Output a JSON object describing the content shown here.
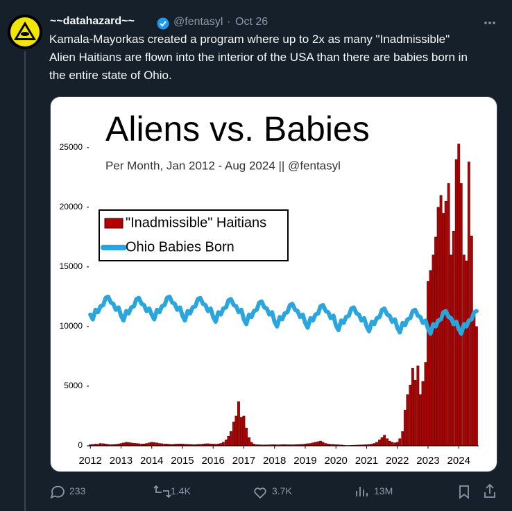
{
  "tweet": {
    "name": "~~datahazard~~",
    "handle": "@fentasyl",
    "separator": "·",
    "date": "Oct 26",
    "text": "Kamala-Mayorkas created a program where up to 2x as many \"Inadmissible\" Alien Haitians are flown into the interior of the USA than there are babies born in the entire state of Ohio."
  },
  "actions": {
    "replies": "233",
    "reposts": "1.4K",
    "likes": "3.7K",
    "views": "13M"
  },
  "chart_data": {
    "type": "bar+line",
    "title": "Aliens vs. Babies",
    "subtitle": "Per Month, Jan 2012 - Aug 2024 || @fentasyl",
    "legend": "upper left",
    "xlim": [
      2011.95,
      2024.65
    ],
    "xticks": [
      2012,
      2013,
      2014,
      2015,
      2016,
      2017,
      2018,
      2019,
      2020,
      2021,
      2022,
      2023,
      2024
    ],
    "ylim": [
      0,
      29000
    ],
    "yticks": [
      0,
      5000,
      10000,
      15000,
      20000,
      25000
    ],
    "x": [
      2012,
      2012.08,
      2012.17,
      2012.25,
      2012.33,
      2012.42,
      2012.5,
      2012.58,
      2012.67,
      2012.75,
      2012.83,
      2012.92,
      2013,
      2013.08,
      2013.17,
      2013.25,
      2013.33,
      2013.42,
      2013.5,
      2013.58,
      2013.67,
      2013.75,
      2013.83,
      2013.92,
      2014,
      2014.08,
      2014.17,
      2014.25,
      2014.33,
      2014.42,
      2014.5,
      2014.58,
      2014.67,
      2014.75,
      2014.83,
      2014.92,
      2015,
      2015.08,
      2015.17,
      2015.25,
      2015.33,
      2015.42,
      2015.5,
      2015.58,
      2015.67,
      2015.75,
      2015.83,
      2015.92,
      2016,
      2016.08,
      2016.17,
      2016.25,
      2016.33,
      2016.42,
      2016.5,
      2016.58,
      2016.67,
      2016.75,
      2016.83,
      2016.92,
      2017,
      2017.08,
      2017.17,
      2017.25,
      2017.33,
      2017.42,
      2017.5,
      2017.58,
      2017.67,
      2017.75,
      2017.83,
      2017.92,
      2018,
      2018.08,
      2018.17,
      2018.25,
      2018.33,
      2018.42,
      2018.5,
      2018.58,
      2018.67,
      2018.75,
      2018.83,
      2018.92,
      2019,
      2019.08,
      2019.17,
      2019.25,
      2019.33,
      2019.42,
      2019.5,
      2019.58,
      2019.67,
      2019.75,
      2019.83,
      2019.92,
      2020,
      2020.08,
      2020.17,
      2020.25,
      2020.33,
      2020.42,
      2020.5,
      2020.58,
      2020.67,
      2020.75,
      2020.83,
      2020.92,
      2021,
      2021.08,
      2021.17,
      2021.25,
      2021.33,
      2021.42,
      2021.5,
      2021.58,
      2021.67,
      2021.75,
      2021.83,
      2021.92,
      2022,
      2022.08,
      2022.17,
      2022.25,
      2022.33,
      2022.42,
      2022.5,
      2022.58,
      2022.67,
      2022.75,
      2022.83,
      2022.92,
      2023,
      2023.08,
      2023.17,
      2023.25,
      2023.33,
      2023.42,
      2023.5,
      2023.58,
      2023.67,
      2023.75,
      2023.83,
      2023.92,
      2024,
      2024.08,
      2024.17,
      2024.25,
      2024.33,
      2024.42,
      2024.5,
      2024.58
    ],
    "series": [
      {
        "name": "\"Inadmissible\" Haitians",
        "kind": "bar",
        "color": "#b30000",
        "values": [
          100,
          120,
          150,
          130,
          200,
          180,
          150,
          120,
          100,
          110,
          130,
          150,
          200,
          250,
          300,
          280,
          250,
          220,
          200,
          180,
          150,
          160,
          200,
          250,
          300,
          280,
          250,
          200,
          180,
          150,
          150,
          130,
          120,
          140,
          150,
          160,
          150,
          140,
          130,
          120,
          110,
          100,
          120,
          130,
          150,
          170,
          180,
          160,
          150,
          140,
          160,
          200,
          300,
          500,
          800,
          1200,
          2000,
          2500,
          3700,
          2400,
          2500,
          1500,
          700,
          300,
          150,
          100,
          90,
          80,
          80,
          80,
          90,
          100,
          100,
          90,
          90,
          100,
          110,
          100,
          90,
          90,
          100,
          110,
          120,
          130,
          150,
          180,
          200,
          250,
          300,
          350,
          400,
          300,
          200,
          150,
          130,
          120,
          100,
          90,
          80,
          50,
          30,
          30,
          40,
          50,
          60,
          70,
          80,
          90,
          100,
          120,
          150,
          200,
          300,
          500,
          700,
          900,
          600,
          400,
          300,
          250,
          300,
          600,
          1200,
          3000,
          4300,
          5100,
          6500,
          5500,
          6700,
          4300,
          5400,
          7000,
          13800,
          14700,
          16000,
          17500,
          20000,
          21000,
          19500,
          20500,
          22000,
          16000,
          18000,
          24000,
          25300,
          22000,
          16000,
          15500,
          23800,
          17600,
          11000,
          10000
        ]
      },
      {
        "name": "Ohio Babies Born",
        "kind": "line",
        "color": "#2aa6dc",
        "values": [
          11000,
          10600,
          11400,
          11200,
          11700,
          11800,
          12400,
          12500,
          12000,
          11900,
          11400,
          11600,
          10900,
          10500,
          11300,
          11100,
          11600,
          11700,
          12300,
          12400,
          11900,
          11800,
          11300,
          11500,
          11000,
          10600,
          11400,
          11200,
          11700,
          11800,
          12400,
          12500,
          12000,
          11900,
          11400,
          11600,
          10900,
          10500,
          11300,
          11100,
          11600,
          11700,
          12300,
          12400,
          11900,
          11800,
          11300,
          11500,
          10800,
          10400,
          11200,
          11000,
          11500,
          11600,
          12200,
          12300,
          11800,
          11700,
          11200,
          11400,
          10600,
          10200,
          11000,
          10800,
          11300,
          11400,
          12000,
          12100,
          11600,
          11500,
          11000,
          11200,
          10400,
          10000,
          10800,
          10600,
          11100,
          11200,
          11800,
          11900,
          11400,
          11300,
          10800,
          11000,
          10300,
          9900,
          10700,
          10500,
          11000,
          11100,
          11700,
          11800,
          11300,
          11200,
          10700,
          10900,
          10100,
          9700,
          10500,
          10300,
          10800,
          10900,
          11500,
          11600,
          11100,
          11000,
          10500,
          10700,
          10000,
          9600,
          10400,
          10200,
          10700,
          10800,
          11400,
          11500,
          11000,
          10900,
          10400,
          10600,
          9900,
          9500,
          10300,
          10100,
          10600,
          10700,
          11300,
          11400,
          10900,
          10800,
          10300,
          10500,
          9800,
          9400,
          10200,
          10000,
          10500,
          10600,
          11200,
          11300,
          10800,
          10700,
          10200,
          10400,
          9800,
          9400,
          10200,
          10000,
          10500,
          10600,
          11200,
          11300
        ]
      }
    ]
  }
}
